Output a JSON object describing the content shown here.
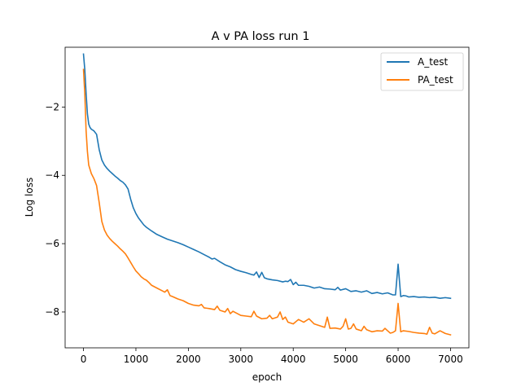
{
  "chart_data": {
    "type": "line",
    "title": "A v PA loss run 1",
    "xlabel": "epoch",
    "ylabel": "Log loss",
    "xlim": [
      -350,
      7350
    ],
    "ylim": [
      -9.05,
      -0.25
    ],
    "xticks": [
      0,
      1000,
      2000,
      3000,
      4000,
      5000,
      6000,
      7000
    ],
    "yticks": [
      -2,
      -4,
      -6,
      -8
    ],
    "tick_labels_x": [
      "0",
      "1000",
      "2000",
      "3000",
      "4000",
      "5000",
      "6000",
      "7000"
    ],
    "tick_labels_y": [
      "−2",
      "−4",
      "−6",
      "−8"
    ],
    "legend_position": "upper-right",
    "grid": false,
    "series": [
      {
        "name": "A_test",
        "color": "#1f77b4",
        "points": [
          [
            0,
            -0.45
          ],
          [
            25,
            -0.9
          ],
          [
            50,
            -1.6
          ],
          [
            75,
            -2.2
          ],
          [
            100,
            -2.5
          ],
          [
            125,
            -2.6
          ],
          [
            150,
            -2.65
          ],
          [
            200,
            -2.7
          ],
          [
            250,
            -2.8
          ],
          [
            300,
            -3.25
          ],
          [
            350,
            -3.55
          ],
          [
            400,
            -3.7
          ],
          [
            450,
            -3.8
          ],
          [
            500,
            -3.88
          ],
          [
            550,
            -3.95
          ],
          [
            600,
            -4.02
          ],
          [
            650,
            -4.08
          ],
          [
            700,
            -4.15
          ],
          [
            750,
            -4.2
          ],
          [
            800,
            -4.28
          ],
          [
            850,
            -4.4
          ],
          [
            900,
            -4.7
          ],
          [
            950,
            -4.95
          ],
          [
            1000,
            -5.12
          ],
          [
            1050,
            -5.25
          ],
          [
            1100,
            -5.35
          ],
          [
            1150,
            -5.45
          ],
          [
            1200,
            -5.52
          ],
          [
            1300,
            -5.63
          ],
          [
            1400,
            -5.73
          ],
          [
            1500,
            -5.8
          ],
          [
            1600,
            -5.87
          ],
          [
            1700,
            -5.92
          ],
          [
            1800,
            -5.97
          ],
          [
            1900,
            -6.03
          ],
          [
            2000,
            -6.1
          ],
          [
            2100,
            -6.17
          ],
          [
            2200,
            -6.24
          ],
          [
            2300,
            -6.32
          ],
          [
            2400,
            -6.4
          ],
          [
            2450,
            -6.45
          ],
          [
            2500,
            -6.43
          ],
          [
            2600,
            -6.53
          ],
          [
            2700,
            -6.62
          ],
          [
            2800,
            -6.68
          ],
          [
            2900,
            -6.76
          ],
          [
            3000,
            -6.81
          ],
          [
            3100,
            -6.85
          ],
          [
            3200,
            -6.9
          ],
          [
            3250,
            -6.92
          ],
          [
            3300,
            -6.83
          ],
          [
            3350,
            -6.99
          ],
          [
            3400,
            -6.84
          ],
          [
            3450,
            -7.0
          ],
          [
            3500,
            -7.03
          ],
          [
            3600,
            -7.06
          ],
          [
            3700,
            -7.08
          ],
          [
            3800,
            -7.12
          ],
          [
            3850,
            -7.1
          ],
          [
            3900,
            -7.11
          ],
          [
            3950,
            -7.05
          ],
          [
            4000,
            -7.2
          ],
          [
            4050,
            -7.13
          ],
          [
            4100,
            -7.22
          ],
          [
            4200,
            -7.22
          ],
          [
            4300,
            -7.25
          ],
          [
            4400,
            -7.3
          ],
          [
            4500,
            -7.27
          ],
          [
            4600,
            -7.32
          ],
          [
            4700,
            -7.33
          ],
          [
            4800,
            -7.35
          ],
          [
            4850,
            -7.28
          ],
          [
            4900,
            -7.36
          ],
          [
            5000,
            -7.32
          ],
          [
            5100,
            -7.4
          ],
          [
            5200,
            -7.38
          ],
          [
            5300,
            -7.42
          ],
          [
            5400,
            -7.38
          ],
          [
            5500,
            -7.46
          ],
          [
            5600,
            -7.43
          ],
          [
            5700,
            -7.47
          ],
          [
            5800,
            -7.44
          ],
          [
            5900,
            -7.5
          ],
          [
            5950,
            -7.5
          ],
          [
            6000,
            -6.6
          ],
          [
            6050,
            -7.55
          ],
          [
            6100,
            -7.52
          ],
          [
            6150,
            -7.53
          ],
          [
            6200,
            -7.56
          ],
          [
            6300,
            -7.55
          ],
          [
            6400,
            -7.57
          ],
          [
            6500,
            -7.56
          ],
          [
            6600,
            -7.58
          ],
          [
            6700,
            -7.57
          ],
          [
            6800,
            -7.6
          ],
          [
            6900,
            -7.58
          ],
          [
            7000,
            -7.6
          ]
        ]
      },
      {
        "name": "PA_test",
        "color": "#ff7f0e",
        "points": [
          [
            0,
            -0.9
          ],
          [
            25,
            -1.6
          ],
          [
            50,
            -2.7
          ],
          [
            75,
            -3.3
          ],
          [
            100,
            -3.7
          ],
          [
            150,
            -3.95
          ],
          [
            200,
            -4.1
          ],
          [
            250,
            -4.3
          ],
          [
            300,
            -4.8
          ],
          [
            350,
            -5.35
          ],
          [
            400,
            -5.6
          ],
          [
            450,
            -5.75
          ],
          [
            500,
            -5.85
          ],
          [
            550,
            -5.93
          ],
          [
            600,
            -6.0
          ],
          [
            650,
            -6.07
          ],
          [
            700,
            -6.15
          ],
          [
            750,
            -6.22
          ],
          [
            800,
            -6.3
          ],
          [
            850,
            -6.42
          ],
          [
            900,
            -6.55
          ],
          [
            950,
            -6.68
          ],
          [
            1000,
            -6.8
          ],
          [
            1050,
            -6.88
          ],
          [
            1100,
            -6.97
          ],
          [
            1150,
            -7.03
          ],
          [
            1200,
            -7.07
          ],
          [
            1250,
            -7.14
          ],
          [
            1300,
            -7.22
          ],
          [
            1400,
            -7.3
          ],
          [
            1500,
            -7.38
          ],
          [
            1550,
            -7.42
          ],
          [
            1600,
            -7.35
          ],
          [
            1650,
            -7.52
          ],
          [
            1700,
            -7.55
          ],
          [
            1800,
            -7.62
          ],
          [
            1900,
            -7.67
          ],
          [
            2000,
            -7.75
          ],
          [
            2100,
            -7.8
          ],
          [
            2200,
            -7.82
          ],
          [
            2250,
            -7.78
          ],
          [
            2300,
            -7.88
          ],
          [
            2400,
            -7.9
          ],
          [
            2500,
            -7.93
          ],
          [
            2550,
            -7.83
          ],
          [
            2600,
            -7.95
          ],
          [
            2700,
            -8.0
          ],
          [
            2750,
            -7.9
          ],
          [
            2800,
            -8.05
          ],
          [
            2850,
            -7.98
          ],
          [
            2900,
            -8.02
          ],
          [
            3000,
            -8.1
          ],
          [
            3100,
            -8.12
          ],
          [
            3200,
            -8.14
          ],
          [
            3250,
            -7.98
          ],
          [
            3300,
            -8.12
          ],
          [
            3400,
            -8.2
          ],
          [
            3500,
            -8.18
          ],
          [
            3550,
            -8.1
          ],
          [
            3600,
            -8.2
          ],
          [
            3700,
            -8.15
          ],
          [
            3750,
            -8.0
          ],
          [
            3800,
            -8.22
          ],
          [
            3850,
            -8.15
          ],
          [
            3900,
            -8.3
          ],
          [
            4000,
            -8.35
          ],
          [
            4100,
            -8.22
          ],
          [
            4200,
            -8.3
          ],
          [
            4300,
            -8.2
          ],
          [
            4400,
            -8.35
          ],
          [
            4500,
            -8.4
          ],
          [
            4600,
            -8.45
          ],
          [
            4650,
            -8.15
          ],
          [
            4700,
            -8.48
          ],
          [
            4800,
            -8.47
          ],
          [
            4900,
            -8.5
          ],
          [
            4950,
            -8.42
          ],
          [
            5000,
            -8.2
          ],
          [
            5050,
            -8.5
          ],
          [
            5100,
            -8.48
          ],
          [
            5150,
            -8.35
          ],
          [
            5200,
            -8.5
          ],
          [
            5300,
            -8.55
          ],
          [
            5350,
            -8.42
          ],
          [
            5400,
            -8.52
          ],
          [
            5500,
            -8.58
          ],
          [
            5600,
            -8.55
          ],
          [
            5700,
            -8.56
          ],
          [
            5750,
            -8.48
          ],
          [
            5800,
            -8.55
          ],
          [
            5850,
            -8.62
          ],
          [
            5900,
            -8.6
          ],
          [
            5950,
            -8.55
          ],
          [
            6000,
            -7.75
          ],
          [
            6050,
            -8.58
          ],
          [
            6100,
            -8.55
          ],
          [
            6200,
            -8.57
          ],
          [
            6300,
            -8.6
          ],
          [
            6400,
            -8.62
          ],
          [
            6500,
            -8.63
          ],
          [
            6550,
            -8.65
          ],
          [
            6600,
            -8.45
          ],
          [
            6650,
            -8.62
          ],
          [
            6700,
            -8.64
          ],
          [
            6800,
            -8.55
          ],
          [
            6900,
            -8.63
          ],
          [
            7000,
            -8.67
          ]
        ]
      }
    ]
  }
}
